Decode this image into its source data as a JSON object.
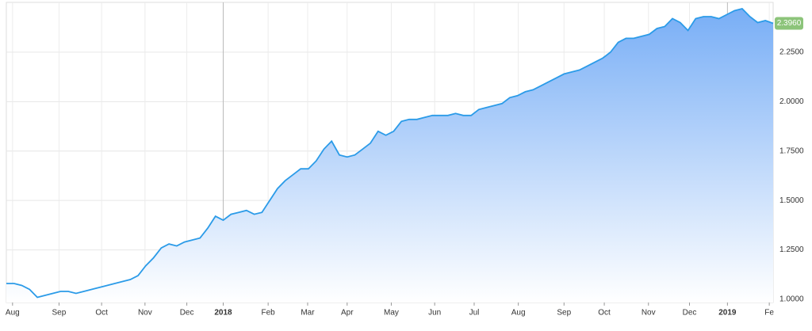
{
  "chart_data": {
    "type": "area",
    "color": "#2b9be8",
    "values": [
      1.08,
      1.08,
      1.07,
      1.05,
      1.01,
      1.02,
      1.03,
      1.04,
      1.04,
      1.03,
      1.04,
      1.05,
      1.06,
      1.07,
      1.08,
      1.09,
      1.1,
      1.12,
      1.17,
      1.21,
      1.26,
      1.28,
      1.27,
      1.29,
      1.3,
      1.31,
      1.36,
      1.42,
      1.4,
      1.43,
      1.44,
      1.45,
      1.43,
      1.44,
      1.5,
      1.56,
      1.6,
      1.63,
      1.66,
      1.66,
      1.7,
      1.76,
      1.8,
      1.73,
      1.72,
      1.73,
      1.76,
      1.79,
      1.85,
      1.83,
      1.85,
      1.9,
      1.91,
      1.91,
      1.92,
      1.93,
      1.93,
      1.93,
      1.94,
      1.93,
      1.93,
      1.96,
      1.97,
      1.98,
      1.99,
      2.02,
      2.03,
      2.05,
      2.06,
      2.08,
      2.1,
      2.12,
      2.14,
      2.15,
      2.16,
      2.18,
      2.2,
      2.22,
      2.25,
      2.3,
      2.32,
      2.32,
      2.33,
      2.34,
      2.37,
      2.38,
      2.42,
      2.4,
      2.36,
      2.42,
      2.43,
      2.43,
      2.42,
      2.44,
      2.46,
      2.47,
      2.43,
      2.4,
      2.41,
      2.396
    ],
    "last_value_label": "2.3960",
    "xlim": [
      0,
      99
    ],
    "xticks": [
      {
        "value": 0.8,
        "label": "Aug"
      },
      {
        "value": 6.8,
        "label": "Sep"
      },
      {
        "value": 12.3,
        "label": "Oct"
      },
      {
        "value": 17.9,
        "label": "Nov"
      },
      {
        "value": 23.3,
        "label": "Dec"
      },
      {
        "value": 28.0,
        "label": "2018"
      },
      {
        "value": 33.8,
        "label": "Feb"
      },
      {
        "value": 38.9,
        "label": "Mar"
      },
      {
        "value": 44.0,
        "label": "Apr"
      },
      {
        "value": 49.7,
        "label": "May"
      },
      {
        "value": 55.3,
        "label": "Jun"
      },
      {
        "value": 60.4,
        "label": "Jul"
      },
      {
        "value": 66.1,
        "label": "Aug"
      },
      {
        "value": 72.0,
        "label": "Sep"
      },
      {
        "value": 77.2,
        "label": "Oct"
      },
      {
        "value": 82.9,
        "label": "Nov"
      },
      {
        "value": 88.2,
        "label": "Dec"
      },
      {
        "value": 93.1,
        "label": "2019"
      },
      {
        "value": 98.5,
        "label": "Fe"
      }
    ],
    "ylim": [
      0.984,
      2.502
    ],
    "yticks": [
      {
        "value": 1.0,
        "label": "1.0000"
      },
      {
        "value": 1.25,
        "label": "1.2500"
      },
      {
        "value": 1.5,
        "label": "1.5000"
      },
      {
        "value": 1.75,
        "label": "1.7500"
      },
      {
        "value": 2.0,
        "label": "2.0000"
      },
      {
        "value": 2.25,
        "label": "2.2500"
      }
    ],
    "grid": true
  }
}
